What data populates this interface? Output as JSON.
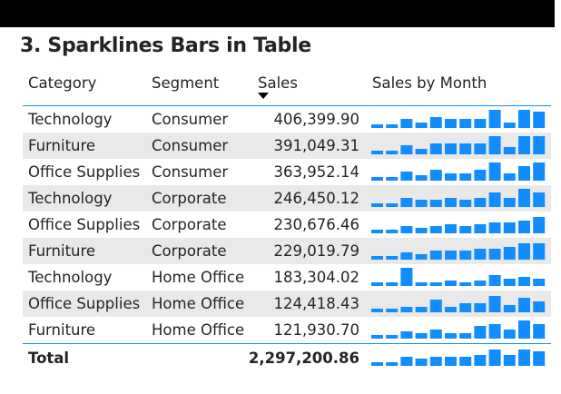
{
  "title": "3. Sparklines Bars in Table",
  "headers": {
    "category": "Category",
    "segment": "Segment",
    "sales": "Sales",
    "sales_by_month": "Sales by Month"
  },
  "bar_color": "#118DFF",
  "rows": [
    {
      "category": "Technology",
      "segment": "Consumer",
      "sales": "406,399.90",
      "months": [
        2,
        2,
        5,
        3,
        6,
        5,
        5,
        5,
        10,
        3,
        10,
        9
      ]
    },
    {
      "category": "Furniture",
      "segment": "Consumer",
      "sales": "391,049.31",
      "months": [
        2,
        2,
        5,
        3,
        6,
        6,
        6,
        6,
        10,
        4,
        10,
        10
      ]
    },
    {
      "category": "Office Supplies",
      "segment": "Consumer",
      "sales": "363,952.14",
      "months": [
        2,
        2,
        5,
        3,
        6,
        4,
        4,
        6,
        10,
        4,
        8,
        10
      ]
    },
    {
      "category": "Technology",
      "segment": "Corporate",
      "sales": "246,450.12",
      "months": [
        2,
        2,
        5,
        4,
        4,
        5,
        4,
        5,
        8,
        5,
        10,
        8
      ]
    },
    {
      "category": "Office Supplies",
      "segment": "Corporate",
      "sales": "230,676.46",
      "months": [
        2,
        2,
        4,
        3,
        4,
        5,
        4,
        5,
        6,
        6,
        7,
        9
      ]
    },
    {
      "category": "Furniture",
      "segment": "Corporate",
      "sales": "229,019.79",
      "months": [
        2,
        2,
        4,
        3,
        5,
        5,
        5,
        6,
        6,
        7,
        9,
        9
      ]
    },
    {
      "category": "Technology",
      "segment": "Home Office",
      "sales": "183,304.02",
      "months": [
        2,
        2,
        10,
        2,
        2,
        3,
        2,
        3,
        6,
        4,
        5,
        4
      ]
    },
    {
      "category": "Office Supplies",
      "segment": "Home Office",
      "sales": "124,418.43",
      "months": [
        2,
        2,
        3,
        3,
        7,
        3,
        5,
        5,
        9,
        4,
        8,
        6
      ]
    },
    {
      "category": "Furniture",
      "segment": "Home Office",
      "sales": "121,930.70",
      "months": [
        2,
        2,
        4,
        3,
        5,
        3,
        3,
        7,
        8,
        5,
        10,
        8
      ]
    }
  ],
  "total": {
    "label": "Total",
    "sales": "2,297,200.86",
    "months": [
      2,
      2,
      5,
      4,
      5,
      5,
      5,
      6,
      9,
      6,
      9,
      8
    ]
  }
}
